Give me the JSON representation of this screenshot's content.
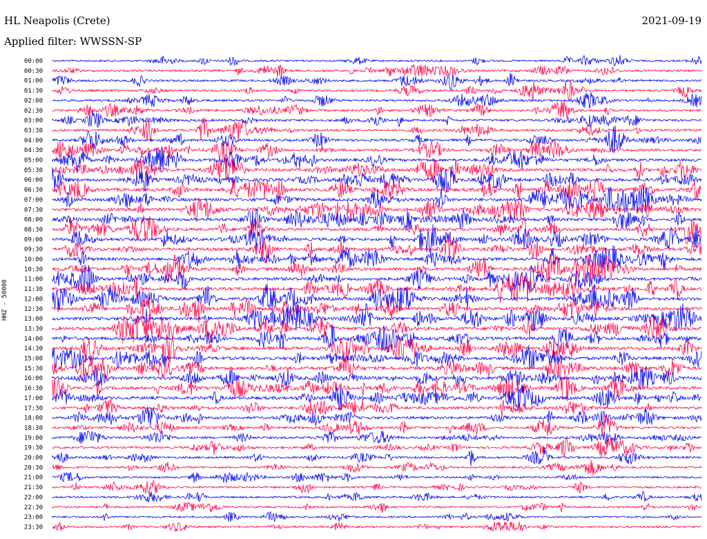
{
  "header": {
    "station": "HL Neapolis (Crete)",
    "date": "2021-09-19",
    "filter": "Applied filter: WWSSN-SP"
  },
  "chart_data": {
    "type": "line",
    "ylabel": "HHZ - 50000",
    "colors": [
      "#0000ee",
      "#ff0044"
    ],
    "rows": [
      "00:00",
      "00:30",
      "01:00",
      "01:30",
      "02:00",
      "02:30",
      "03:00",
      "03:30",
      "04:00",
      "04:30",
      "05:00",
      "05:30",
      "06:00",
      "06:30",
      "07:00",
      "07:30",
      "08:00",
      "08:30",
      "09:00",
      "09:30",
      "10:00",
      "10:30",
      "11:00",
      "11:30",
      "12:00",
      "12:30",
      "13:00",
      "13:30",
      "14:00",
      "14:30",
      "15:00",
      "15:30",
      "16:00",
      "16:30",
      "17:00",
      "17:30",
      "18:00",
      "18:30",
      "19:00",
      "19:30",
      "20:00",
      "20:30",
      "21:00",
      "21:30",
      "22:00",
      "22:30",
      "23:00",
      "23:30"
    ],
    "activity": [
      0.3,
      0.45,
      0.4,
      0.45,
      0.45,
      0.5,
      0.5,
      0.55,
      0.6,
      0.65,
      0.75,
      0.85,
      0.9,
      0.9,
      0.85,
      0.85,
      0.8,
      0.8,
      0.8,
      0.8,
      0.8,
      0.85,
      0.85,
      0.85,
      0.9,
      0.9,
      0.9,
      0.9,
      0.9,
      0.9,
      0.9,
      0.9,
      0.9,
      0.85,
      0.8,
      0.7,
      0.65,
      0.55,
      0.5,
      0.5,
      0.45,
      0.35,
      0.35,
      0.35,
      0.35,
      0.3,
      0.3,
      0.3
    ]
  }
}
